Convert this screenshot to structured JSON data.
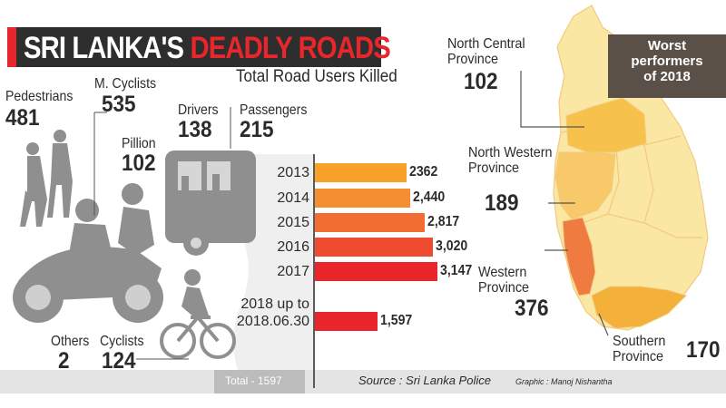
{
  "title": {
    "part1": "SRI LANKA'S",
    "part2": "DEADLY ROADS"
  },
  "subtitle": "Total Road Users Killed",
  "road_users": [
    {
      "label": "Pedestrians",
      "value": "481"
    },
    {
      "label": "M. Cyclists",
      "value": "535"
    },
    {
      "label": "Pillion",
      "value": "102"
    },
    {
      "label": "Drivers",
      "value": "138"
    },
    {
      "label": "Passengers",
      "value": "215"
    },
    {
      "label": "Others",
      "value": "2"
    },
    {
      "label": "Cyclists",
      "value": "124"
    }
  ],
  "total_label": "Total - 1597",
  "source": "Source : Sri Lanka Police",
  "graphic_credit": "Graphic : Manoj Nishantha",
  "map": {
    "badge": "Worst performers of 2018",
    "provinces": [
      {
        "name": "North Central Province",
        "value": "102",
        "color": "#f7c24c"
      },
      {
        "name": "North Western Province",
        "value": "189",
        "color": "#f8c968"
      },
      {
        "name": "Western Province",
        "value": "376",
        "color": "#ef7b40"
      },
      {
        "name": "Southern Province",
        "value": "170",
        "color": "#f3b13a"
      }
    ],
    "base_color": "#fbe7a4",
    "mid_color": "#f9d98a"
  },
  "chart_data": {
    "type": "bar",
    "orientation": "horizontal",
    "categories": [
      "2013",
      "2014",
      "2015",
      "2016",
      "2017",
      "2018 up to 2018.06.30"
    ],
    "category_lines": [
      [
        "2013"
      ],
      [
        "2014"
      ],
      [
        "2015"
      ],
      [
        "2016"
      ],
      [
        "2017"
      ],
      [
        "2018 up to",
        "2018.06.30"
      ]
    ],
    "values": [
      2362,
      2440,
      2817,
      3020,
      3147,
      1597
    ],
    "value_labels": [
      "2362",
      "2,440",
      "2,817",
      "3,020",
      "3,147",
      "1,597"
    ],
    "colors": [
      "#f9a12b",
      "#f58d32",
      "#f26d32",
      "#ee4b30",
      "#e8262b",
      "#e8262b"
    ],
    "grid": false,
    "legend": "none"
  }
}
